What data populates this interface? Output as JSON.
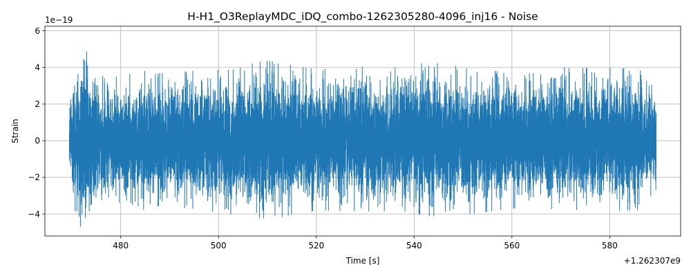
{
  "chart_data": {
    "type": "line",
    "title": "H-H1_O3ReplayMDC_iDQ_combo-1262305280-4096_inj16 - Noise",
    "xlabel": "Time [s]",
    "ylabel": "Strain",
    "x_offset_label": "+1.262307e9",
    "y_scale_label": "1e−19",
    "xlim": [
      464.5,
      594.5
    ],
    "ylim": [
      -5.2,
      6.25
    ],
    "x_ticks": [
      480,
      500,
      520,
      540,
      560,
      580
    ],
    "x_tick_labels": [
      "480",
      "500",
      "520",
      "540",
      "560",
      "580"
    ],
    "y_ticks": [
      -4,
      -2,
      0,
      2,
      4,
      6
    ],
    "y_tick_labels": [
      "−4",
      "−2",
      "0",
      "2",
      "4",
      "6"
    ],
    "grid": true,
    "series": [
      {
        "color": "#1f77b4",
        "x_range": [
          469.5,
          589.5
        ],
        "envelope": {
          "x": [
            469.5,
            470.2,
            472.4,
            475,
            480,
            484,
            487,
            495,
            503,
            509,
            511,
            518,
            522,
            531,
            537,
            543,
            549.5,
            551,
            560,
            566,
            569,
            571,
            580,
            586,
            589.5
          ],
          "upper": [
            1.9,
            3.1,
            5.7,
            3.9,
            3.6,
            3.9,
            3.9,
            4.1,
            3.4,
            4.8,
            4.4,
            4.3,
            4.2,
            4.6,
            4.4,
            4.8,
            3.6,
            3.6,
            3.8,
            3.6,
            4.4,
            4.2,
            4.3,
            4.3,
            2.9
          ],
          "lower": [
            -1.8,
            -4.2,
            -4.6,
            -3.5,
            -3.2,
            -3.8,
            -3.3,
            -3.4,
            -4.5,
            -3.8,
            -4.2,
            -3.5,
            -3.5,
            -3.3,
            -3.4,
            -3.6,
            -4.6,
            -4.3,
            -3.6,
            -3.7,
            -4.3,
            -3.6,
            -3.5,
            -3.4,
            -2.5
          ]
        }
      }
    ]
  }
}
